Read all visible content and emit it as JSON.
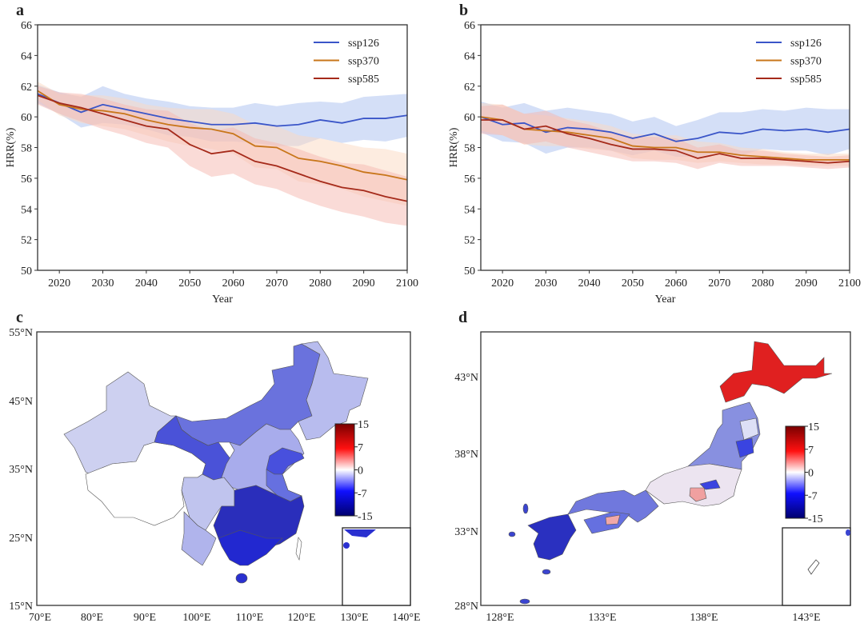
{
  "panels": {
    "a": "a",
    "b": "b",
    "c": "c",
    "d": "d"
  },
  "chart_data": [
    {
      "id": "a",
      "type": "line",
      "xlabel": "Year",
      "ylabel": "HRR(%)",
      "xlim": [
        2015,
        2100
      ],
      "ylim": [
        50,
        66
      ],
      "xticks": [
        2020,
        2030,
        2040,
        2050,
        2060,
        2070,
        2080,
        2090,
        2100
      ],
      "yticks": [
        50,
        52,
        54,
        56,
        58,
        60,
        62,
        64,
        66
      ],
      "legend_position": "top-right",
      "grid": false,
      "x": [
        2015,
        2020,
        2025,
        2030,
        2035,
        2040,
        2045,
        2050,
        2055,
        2060,
        2065,
        2070,
        2075,
        2080,
        2085,
        2090,
        2095,
        2100
      ],
      "series": [
        {
          "name": "ssp126",
          "color": "#3a55c8",
          "band_color": "#a9c0f0",
          "values": [
            61.5,
            60.9,
            60.3,
            60.8,
            60.5,
            60.2,
            59.9,
            59.7,
            59.5,
            59.5,
            59.6,
            59.4,
            59.5,
            59.8,
            59.6,
            59.9,
            59.9,
            60.1
          ],
          "band": [
            0.6,
            0.7,
            1.0,
            1.2,
            1.0,
            1.0,
            1.1,
            1.0,
            1.1,
            1.1,
            1.3,
            1.3,
            1.4,
            1.2,
            1.3,
            1.4,
            1.5,
            1.4
          ]
        },
        {
          "name": "ssp370",
          "color": "#c8761a",
          "band_color": "#fbd9c2",
          "values": [
            61.7,
            60.8,
            60.5,
            60.4,
            60.2,
            59.8,
            59.5,
            59.3,
            59.2,
            58.9,
            58.1,
            58.0,
            57.3,
            57.1,
            56.8,
            56.4,
            56.2,
            55.9
          ],
          "band": [
            0.6,
            0.7,
            0.9,
            1.0,
            1.0,
            1.0,
            1.1,
            1.2,
            1.3,
            1.3,
            1.4,
            1.4,
            1.5,
            1.5,
            1.5,
            1.6,
            1.7,
            1.7
          ]
        },
        {
          "name": "ssp585",
          "color": "#a52a1a",
          "band_color": "#f6b8b0",
          "values": [
            61.4,
            60.9,
            60.6,
            60.2,
            59.8,
            59.4,
            59.2,
            58.2,
            57.6,
            57.8,
            57.1,
            56.8,
            56.3,
            55.8,
            55.4,
            55.2,
            54.8,
            54.5
          ],
          "band": [
            0.6,
            0.7,
            0.9,
            1.0,
            1.0,
            1.1,
            1.2,
            1.4,
            1.5,
            1.5,
            1.5,
            1.5,
            1.6,
            1.6,
            1.6,
            1.7,
            1.7,
            1.6
          ]
        }
      ]
    },
    {
      "id": "b",
      "type": "line",
      "xlabel": "Year",
      "ylabel": "HRR(%)",
      "xlim": [
        2015,
        2100
      ],
      "ylim": [
        50,
        66
      ],
      "xticks": [
        2020,
        2030,
        2040,
        2050,
        2060,
        2070,
        2080,
        2090,
        2100
      ],
      "yticks": [
        50,
        52,
        54,
        56,
        58,
        60,
        62,
        64,
        66
      ],
      "legend_position": "top-right",
      "grid": false,
      "x": [
        2015,
        2020,
        2025,
        2030,
        2035,
        2040,
        2045,
        2050,
        2055,
        2060,
        2065,
        2070,
        2075,
        2080,
        2085,
        2090,
        2095,
        2100
      ],
      "series": [
        {
          "name": "ssp126",
          "color": "#3a55c8",
          "band_color": "#a9c0f0",
          "values": [
            60.0,
            59.5,
            59.6,
            59.0,
            59.3,
            59.2,
            59.0,
            58.6,
            58.9,
            58.4,
            58.6,
            59.0,
            58.9,
            59.2,
            59.1,
            59.2,
            59.0,
            59.2
          ],
          "band": [
            1.0,
            1.1,
            1.3,
            1.4,
            1.3,
            1.2,
            1.2,
            1.1,
            1.1,
            1.0,
            1.2,
            1.3,
            1.4,
            1.3,
            1.3,
            1.4,
            1.5,
            1.3
          ]
        },
        {
          "name": "ssp370",
          "color": "#c8761a",
          "band_color": "#fbd9c2",
          "values": [
            60.0,
            59.8,
            59.2,
            59.1,
            59.0,
            58.8,
            58.6,
            58.1,
            58.0,
            58.0,
            57.7,
            57.7,
            57.5,
            57.4,
            57.3,
            57.2,
            57.2,
            57.2
          ],
          "band": [
            0.9,
            1.0,
            1.0,
            1.0,
            0.9,
            0.9,
            0.8,
            0.8,
            0.8,
            0.8,
            0.7,
            0.6,
            0.5,
            0.5,
            0.4,
            0.4,
            0.4,
            0.4
          ]
        },
        {
          "name": "ssp585",
          "color": "#a52a1a",
          "band_color": "#f6b8b0",
          "values": [
            59.8,
            59.8,
            59.2,
            59.4,
            58.9,
            58.6,
            58.2,
            57.9,
            57.9,
            57.8,
            57.3,
            57.6,
            57.3,
            57.3,
            57.2,
            57.1,
            57.0,
            57.1
          ],
          "band": [
            0.9,
            1.0,
            1.0,
            1.0,
            0.9,
            0.9,
            0.8,
            0.8,
            0.8,
            0.8,
            0.7,
            0.6,
            0.5,
            0.5,
            0.4,
            0.4,
            0.4,
            0.4
          ]
        }
      ]
    }
  ],
  "map_c": {
    "lat_ticks": [
      "55°N",
      "45°N",
      "35°N",
      "25°N",
      "15°N"
    ],
    "lon_ticks": [
      "70°E",
      "80°E",
      "90°E",
      "100°E",
      "110°E",
      "120°E",
      "130°E",
      "140°E"
    ],
    "colorbar_ticks": [
      "15",
      "7",
      "0",
      "-7",
      "-15"
    ]
  },
  "map_d": {
    "lat_ticks": [
      "43°N",
      "38°N",
      "33°N",
      "28°N"
    ],
    "lon_ticks": [
      "128°E",
      "133°E",
      "138°E",
      "143°E"
    ],
    "colorbar_ticks": [
      "15",
      "7",
      "0",
      "-7",
      "-15"
    ]
  },
  "colorbar_colors": [
    "#7a0000",
    "#ff1010",
    "#ffffff",
    "#1010ff",
    "#00006e"
  ]
}
